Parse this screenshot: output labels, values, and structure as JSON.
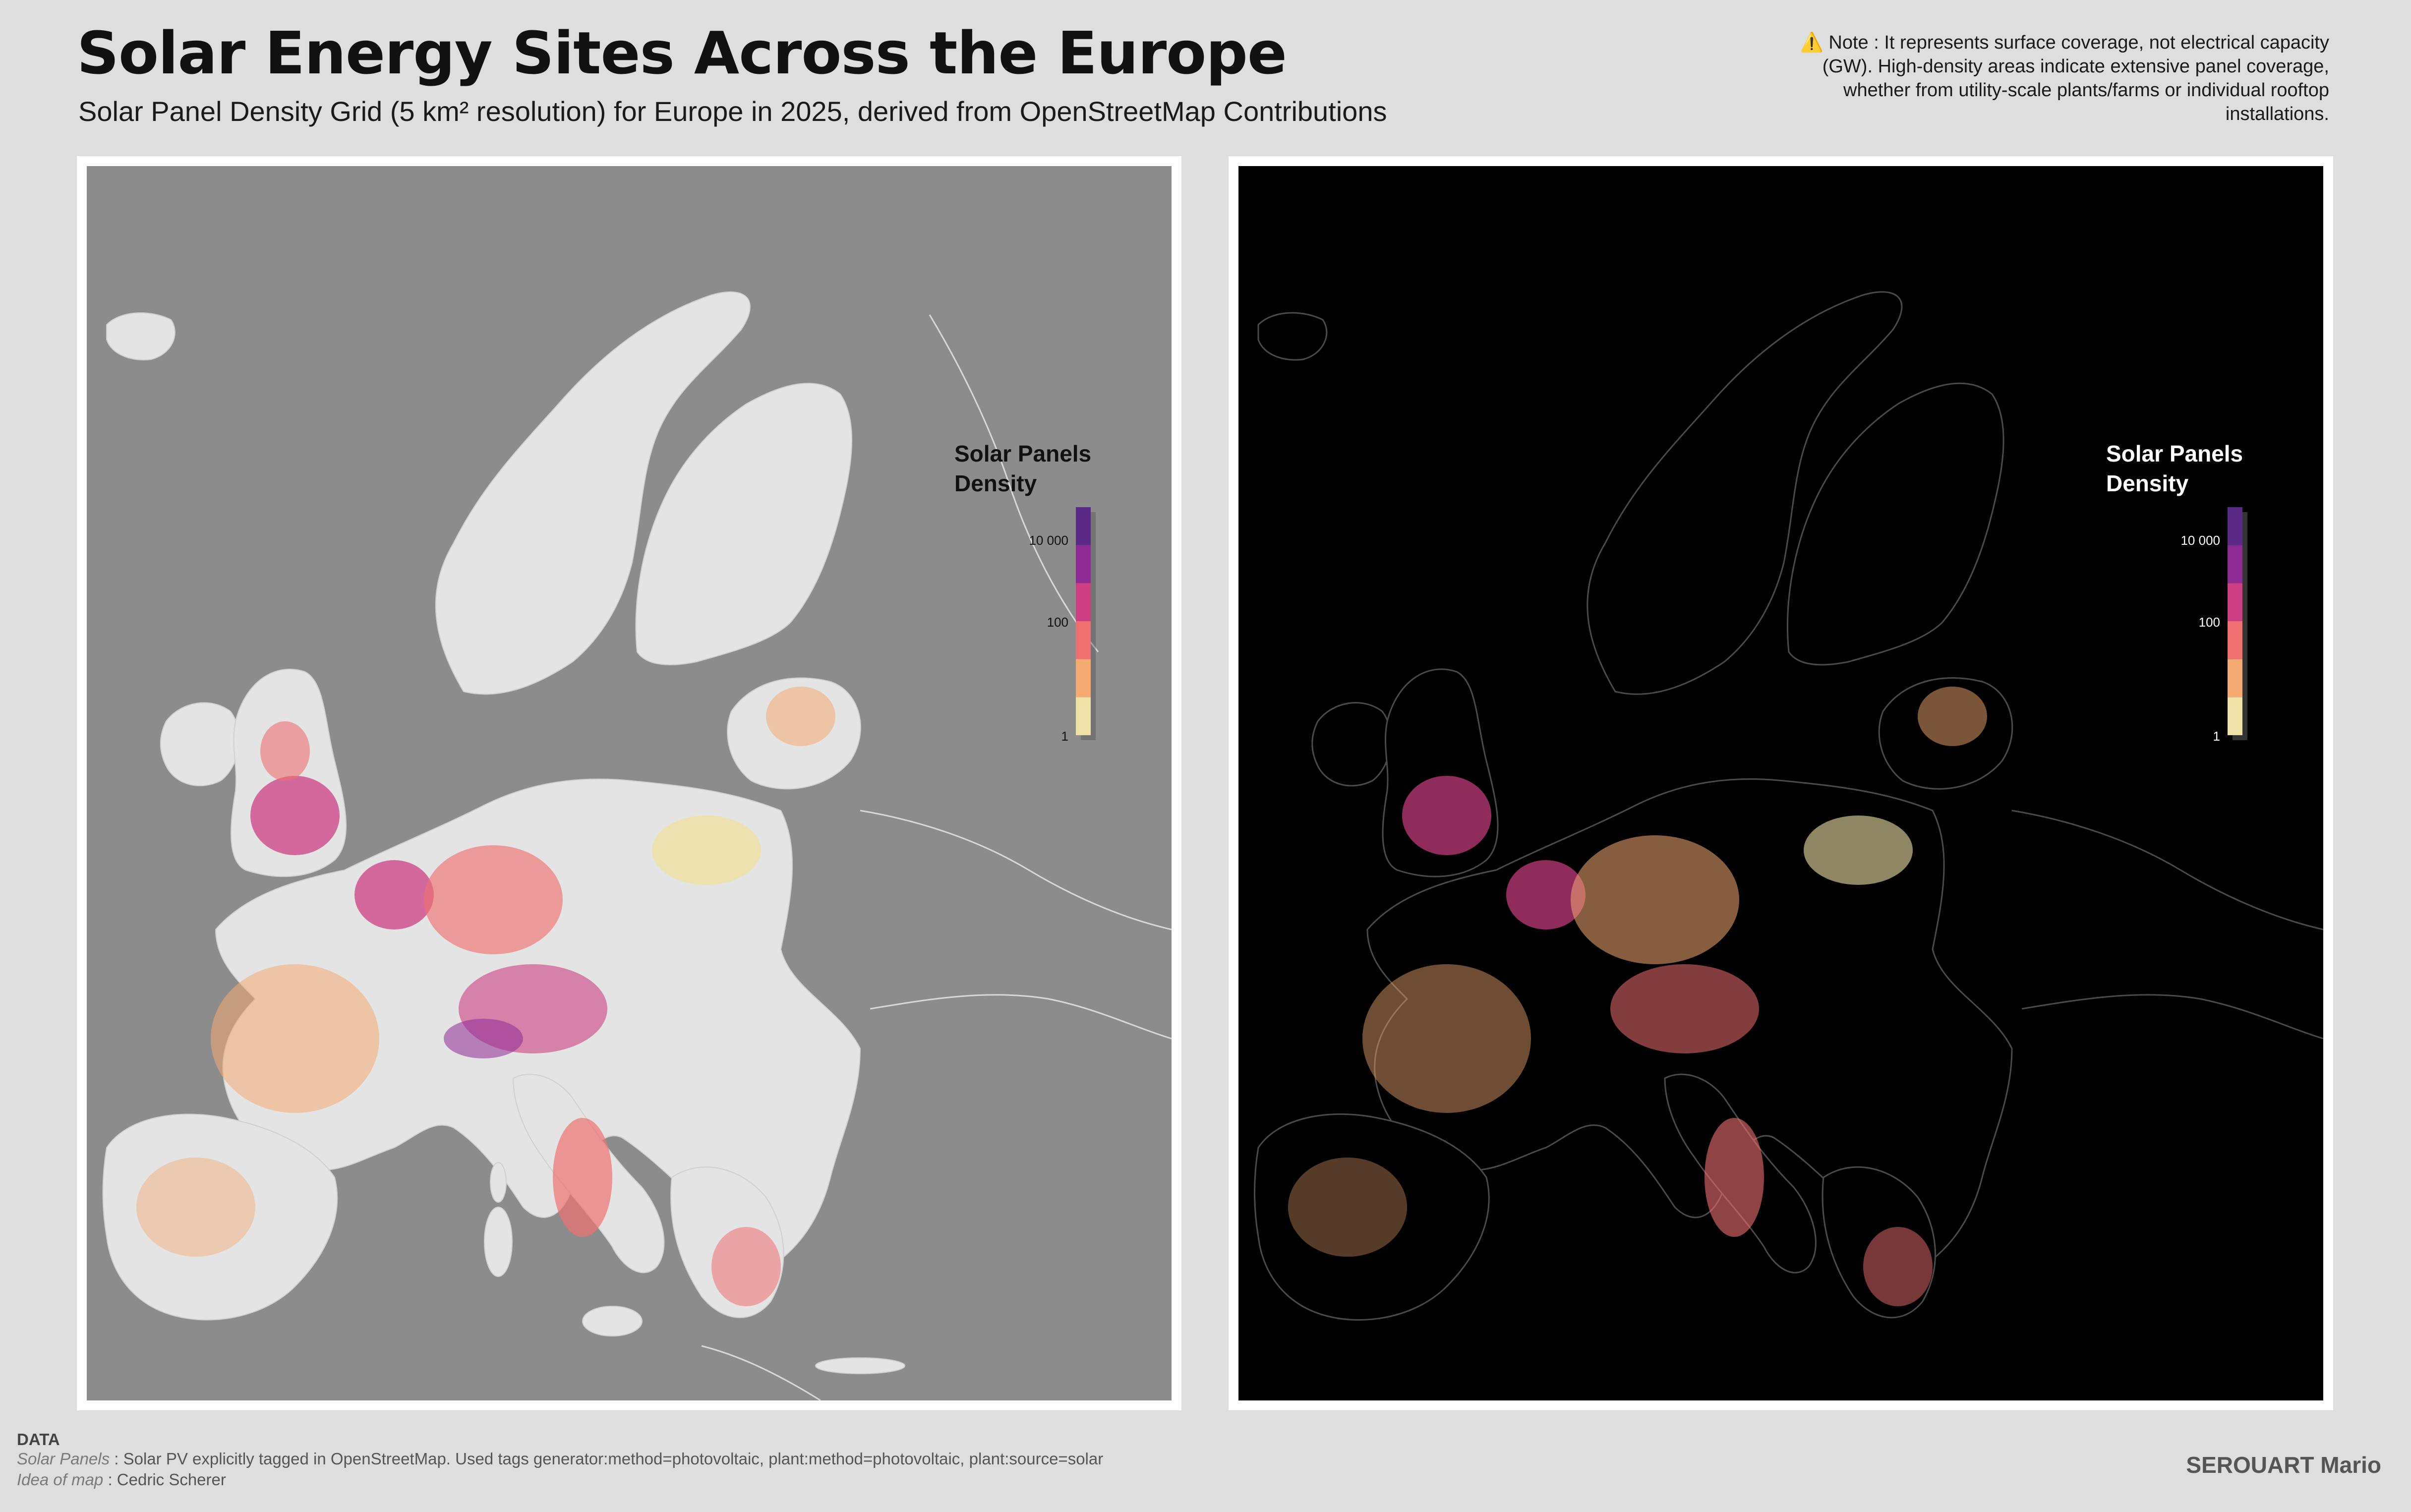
{
  "header": {
    "title": "Solar Energy Sites Across the Europe",
    "subtitle": "Solar Panel Density Grid (5 km² resolution) for Europe in 2025, derived from OpenStreetMap Contributions",
    "note_icon": "⚠️",
    "note_text": "Note : It represents surface coverage, not electrical capacity (GW). High-density areas indicate extensive panel coverage, whether from utility-scale plants/farms or individual rooftop installations."
  },
  "maps": [
    {
      "theme": "light",
      "background": "#8c8c8c",
      "land_color": "#e6e6e6",
      "border_color": "#c8c8c8",
      "legend_text_color": "#111111"
    },
    {
      "theme": "dark",
      "background": "#000000",
      "land_color": "#000000",
      "border_color": "#555555",
      "legend_text_color": "#ffffff"
    }
  ],
  "legend": {
    "title_line1": "Solar Panels",
    "title_line2": "Density",
    "scale": "log",
    "labels": [
      "10 000",
      "100",
      "1"
    ],
    "colors": [
      "#5b2a86",
      "#8e2a93",
      "#cc3f83",
      "#f07072",
      "#f5aa74",
      "#efe0a6"
    ]
  },
  "footer": {
    "heading": "DATA",
    "source_label": "Solar Panels",
    "source_text": " : Solar PV explicitly tagged in OpenStreetMap. Used tags generator:method=photovoltaic, plant:method=photovoltaic, plant:source=solar",
    "idea_label": "Idea of map",
    "idea_text": " : Cedric Scherer",
    "author": "SEROUART Mario"
  }
}
